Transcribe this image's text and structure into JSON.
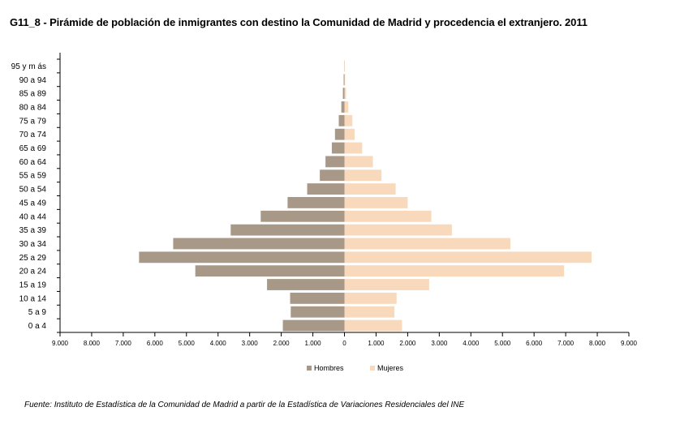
{
  "title": "G11_8 - Pirámide de población de inmigrantes con destino la Comunidad de Madrid y procedencia el extranjero.  2011",
  "source": "Fuente: Instituto de Estadística de la Comunidad de Madrid a partir de la Estadística de Variaciones Residenciales del INE",
  "colors": {
    "hombres": "#a79888",
    "mujeres": "#f8d9bc",
    "axis": "#000000"
  },
  "chart_data": {
    "type": "bar",
    "orientation": "horizontal-pyramid",
    "categories": [
      "0 a 4",
      "5 a 9",
      "10 a 14",
      "15 a 19",
      "20 a 24",
      "25 a 29",
      "30 a 34",
      "35 a 39",
      "40 a 44",
      "45 a 49",
      "50 a 54",
      "55 a 59",
      "60 a 64",
      "65 a 69",
      "70 a 74",
      "75 a 79",
      "80 a 84",
      "85 a 89",
      "90 a 94",
      "95 y más"
    ],
    "category_labels": [
      "0 a 4",
      "5 a 9",
      "10 a 14",
      "15 a 19",
      "20 a 24",
      "25 a 29",
      "30 a 34",
      "35 a 39",
      "40 a 44",
      "45 a 49",
      "50 a 54",
      "55 a 59",
      "60 a 64",
      "65 a 69",
      "70 a 74",
      "75 a 79",
      "80 a 84",
      "85 a 89",
      "90 a 94",
      "95 y m ás"
    ],
    "series": [
      {
        "name": "Hombres",
        "side": "left",
        "values": [
          1950,
          1700,
          1720,
          2450,
          4720,
          6500,
          5420,
          3600,
          2650,
          1800,
          1180,
          780,
          600,
          400,
          300,
          180,
          100,
          50,
          25,
          5
        ]
      },
      {
        "name": "Mujeres",
        "side": "right",
        "values": [
          1820,
          1580,
          1650,
          2680,
          6950,
          7820,
          5250,
          3400,
          2750,
          2000,
          1620,
          1170,
          900,
          560,
          320,
          250,
          120,
          50,
          20,
          5
        ]
      }
    ],
    "legend": [
      "Hombres",
      "Mujeres"
    ],
    "legend_position": "bottom",
    "x_ticks": [
      "9.000",
      "8.000",
      "7.000",
      "6.000",
      "5.000",
      "4.000",
      "3.000",
      "2.000",
      "1.000",
      "0",
      "1.000",
      "2.000",
      "3.000",
      "4.000",
      "5.000",
      "6.000",
      "7.000",
      "8.000",
      "9.000"
    ],
    "xlim": [
      -9000,
      9000
    ],
    "xlabel": "",
    "ylabel": "",
    "grid": false
  }
}
